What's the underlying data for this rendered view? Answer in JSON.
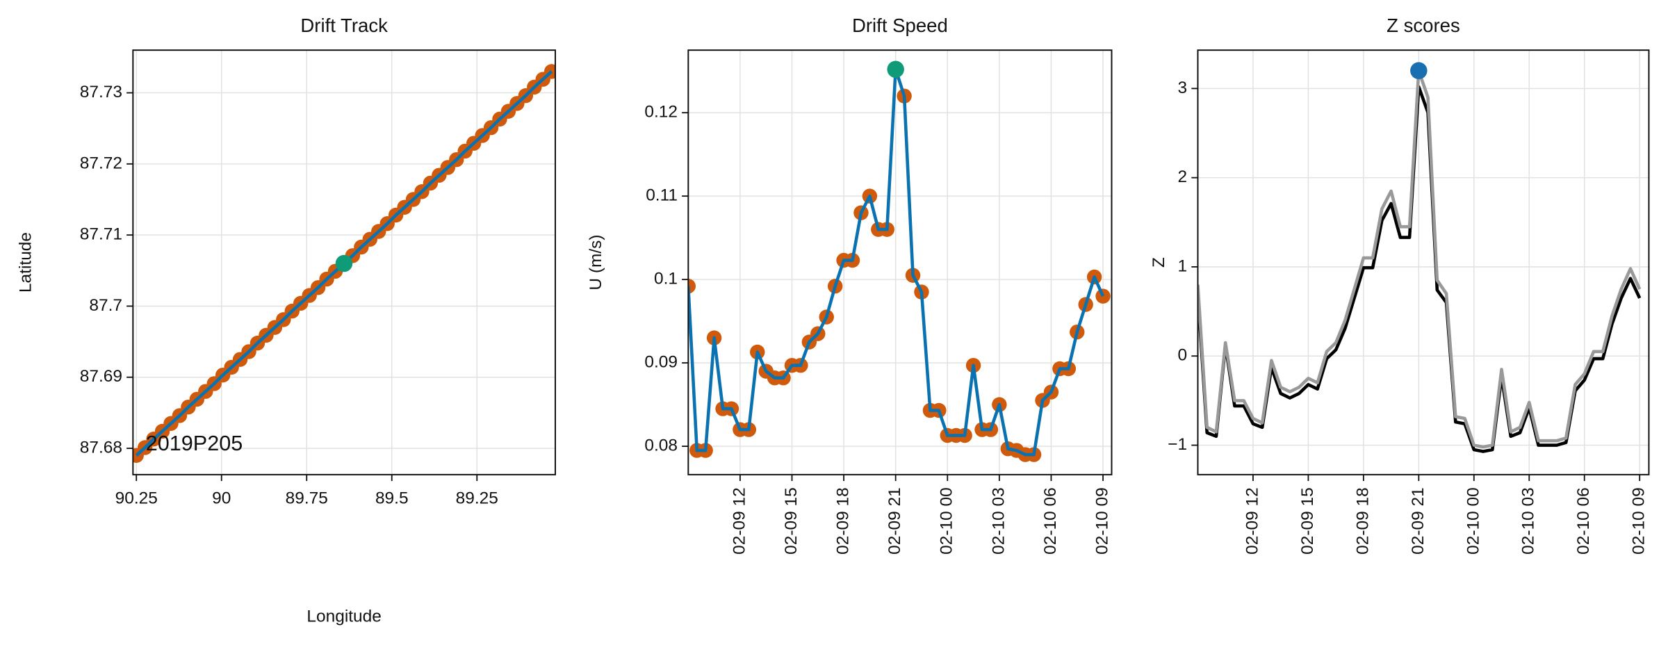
{
  "chart_data": [
    {
      "type": "line",
      "title": "Drift Track",
      "xlabel": "Longitude",
      "ylabel": "Latitude",
      "annotation": "2019P205",
      "x": [
        90.25,
        90.2246,
        90.1992,
        90.1738,
        90.1484,
        90.123,
        90.0976,
        90.0722,
        90.0468,
        90.0214,
        89.996,
        89.9706,
        89.9452,
        89.9198,
        89.8944,
        89.869,
        89.8436,
        89.8182,
        89.7928,
        89.7674,
        89.742,
        89.7166,
        89.6912,
        89.6658,
        89.6404,
        89.615,
        89.5896,
        89.5642,
        89.5388,
        89.5134,
        89.488,
        89.4626,
        89.4372,
        89.4118,
        89.3864,
        89.361,
        89.3356,
        89.3102,
        89.2848,
        89.2594,
        89.234,
        89.2086,
        89.1832,
        89.1578,
        89.1324,
        89.107,
        89.0816,
        89.0562,
        89.0308
      ],
      "series": [
        {
          "color": "#0a72b0",
          "marker_color": "#cf5a0c",
          "values": [
            87.679,
            87.6801,
            87.6813,
            87.6824,
            87.6835,
            87.6846,
            87.6858,
            87.6869,
            87.688,
            87.6891,
            87.6903,
            87.6914,
            87.6925,
            87.6936,
            87.6948,
            87.6959,
            87.697,
            87.6981,
            87.6993,
            87.7004,
            87.7015,
            87.7026,
            87.7038,
            87.7049,
            87.706,
            87.7071,
            87.7083,
            87.7094,
            87.7105,
            87.7116,
            87.7128,
            87.7139,
            87.715,
            87.7161,
            87.7173,
            87.7184,
            87.7195,
            87.7206,
            87.7218,
            87.7229,
            87.724,
            87.7251,
            87.7263,
            87.7274,
            87.7285,
            87.7296,
            87.7308,
            87.7319,
            87.733
          ]
        }
      ],
      "highlight": {
        "color": "#0f9a78",
        "x": 89.6404,
        "y": 87.706
      },
      "xlim": [
        90.26,
        89.02
      ],
      "xticks": [
        90.25,
        90,
        89.75,
        89.5,
        89.25
      ],
      "ylim": [
        87.6763,
        87.736
      ],
      "yticks": [
        87.68,
        87.69,
        87.7,
        87.71,
        87.72,
        87.73
      ],
      "grid": true
    },
    {
      "type": "line",
      "title": "Drift Speed",
      "ylabel": "U (m/s)",
      "x": [
        "02-09 09:00",
        "02-09 09:30",
        "02-09 10:00",
        "02-09 10:30",
        "02-09 11:00",
        "02-09 11:30",
        "02-09 12:00",
        "02-09 12:30",
        "02-09 13:00",
        "02-09 13:30",
        "02-09 14:00",
        "02-09 14:30",
        "02-09 15:00",
        "02-09 15:30",
        "02-09 16:00",
        "02-09 16:30",
        "02-09 17:00",
        "02-09 17:30",
        "02-09 18:00",
        "02-09 18:30",
        "02-09 19:00",
        "02-09 19:30",
        "02-09 20:00",
        "02-09 20:30",
        "02-09 21:00",
        "02-09 21:30",
        "02-09 22:00",
        "02-09 22:30",
        "02-09 23:00",
        "02-09 23:30",
        "02-10 00:00",
        "02-10 00:30",
        "02-10 01:00",
        "02-10 01:30",
        "02-10 02:00",
        "02-10 02:30",
        "02-10 03:00",
        "02-10 03:30",
        "02-10 04:00",
        "02-10 04:30",
        "02-10 05:00",
        "02-10 05:30",
        "02-10 06:00",
        "02-10 06:30",
        "02-10 07:00",
        "02-10 07:30",
        "02-10 08:00",
        "02-10 08:30",
        "02-10 09:00"
      ],
      "series": [
        {
          "color": "#0a72b0",
          "marker_color": "#cf5a0c",
          "values": [
            0.0992,
            0.0795,
            0.0795,
            0.093,
            0.0845,
            0.0845,
            0.082,
            0.082,
            0.0913,
            0.089,
            0.0882,
            0.0882,
            0.0897,
            0.0897,
            0.0925,
            0.0935,
            0.0955,
            0.0992,
            0.1023,
            0.1023,
            0.108,
            0.11,
            0.106,
            0.106,
            0.1252,
            0.122,
            0.1005,
            0.0985,
            0.0843,
            0.0843,
            0.0813,
            0.0813,
            0.0813,
            0.0897,
            0.082,
            0.082,
            0.085,
            0.0797,
            0.0795,
            0.079,
            0.079,
            0.0855,
            0.0865,
            0.0893,
            0.0893,
            0.0937,
            0.097,
            0.1003,
            0.098
          ]
        }
      ],
      "highlight": {
        "color": "#0f9a78",
        "x": "02-09 21:00",
        "y": 0.1252
      },
      "xlim": [
        "02-09 09:00",
        "02-10 09:30"
      ],
      "xticks": [
        {
          "value": "02-09 12:00",
          "label": "02-09 12"
        },
        {
          "value": "02-09 15:00",
          "label": "02-09 15"
        },
        {
          "value": "02-09 18:00",
          "label": "02-09 18"
        },
        {
          "value": "02-09 21:00",
          "label": "02-09 21"
        },
        {
          "value": "02-10 00:00",
          "label": "02-10 00"
        },
        {
          "value": "02-10 03:00",
          "label": "02-10 03"
        },
        {
          "value": "02-10 06:00",
          "label": "02-10 06"
        },
        {
          "value": "02-10 09:00",
          "label": "02-10 09"
        }
      ],
      "ylim": [
        0.0766,
        0.1275
      ],
      "yticks": [
        0.08,
        0.09,
        0.1,
        0.11,
        0.12
      ],
      "grid": true
    },
    {
      "type": "line",
      "title": "Z scores",
      "ylabel": "Z",
      "x": [
        "02-09 09:00",
        "02-09 09:30",
        "02-09 10:00",
        "02-09 10:30",
        "02-09 11:00",
        "02-09 11:30",
        "02-09 12:00",
        "02-09 12:30",
        "02-09 13:00",
        "02-09 13:30",
        "02-09 14:00",
        "02-09 14:30",
        "02-09 15:00",
        "02-09 15:30",
        "02-09 16:00",
        "02-09 16:30",
        "02-09 17:00",
        "02-09 17:30",
        "02-09 18:00",
        "02-09 18:30",
        "02-09 19:00",
        "02-09 19:30",
        "02-09 20:00",
        "02-09 20:30",
        "02-09 21:00",
        "02-09 21:30",
        "02-09 22:00",
        "02-09 22:30",
        "02-09 23:00",
        "02-09 23:30",
        "02-10 00:00",
        "02-10 00:30",
        "02-10 01:00",
        "02-10 01:30",
        "02-10 02:00",
        "02-10 02:30",
        "02-10 03:00",
        "02-10 03:30",
        "02-10 04:00",
        "02-10 04:30",
        "02-10 05:00",
        "02-10 05:30",
        "02-10 06:00",
        "02-10 06:30",
        "02-10 07:00",
        "02-10 07:30",
        "02-10 08:00",
        "02-10 08:30",
        "02-10 09:00"
      ],
      "series": [
        {
          "color": "#000000",
          "values": [
            0.7,
            -0.86,
            -0.9,
            0.12,
            -0.56,
            -0.56,
            -0.76,
            -0.8,
            -0.13,
            -0.42,
            -0.47,
            -0.42,
            -0.32,
            -0.37,
            -0.03,
            0.07,
            0.31,
            0.65,
            0.99,
            0.99,
            1.52,
            1.71,
            1.33,
            1.33,
            3.02,
            2.73,
            0.74,
            0.6,
            -0.74,
            -0.76,
            -1.05,
            -1.07,
            -1.05,
            -0.23,
            -0.9,
            -0.86,
            -0.58,
            -1.0,
            -1.0,
            -1.0,
            -0.97,
            -0.39,
            -0.27,
            -0.03,
            -0.03,
            0.36,
            0.65,
            0.87,
            0.65
          ]
        },
        {
          "color": "#999999",
          "values": [
            0.8,
            -0.8,
            -0.85,
            0.15,
            -0.5,
            -0.5,
            -0.7,
            -0.75,
            -0.05,
            -0.35,
            -0.4,
            -0.35,
            -0.25,
            -0.3,
            0.05,
            0.15,
            0.4,
            0.75,
            1.1,
            1.1,
            1.65,
            1.85,
            1.45,
            1.45,
            3.2,
            2.9,
            0.85,
            0.7,
            -0.68,
            -0.7,
            -1.0,
            -1.02,
            -1.0,
            -0.15,
            -0.85,
            -0.8,
            -0.52,
            -0.95,
            -0.95,
            -0.95,
            -0.92,
            -0.32,
            -0.2,
            0.05,
            0.05,
            0.45,
            0.75,
            0.98,
            0.75
          ]
        }
      ],
      "highlight": {
        "color": "#1a6fb0",
        "x": "02-09 21:00",
        "y": 3.2
      },
      "xlim": [
        "02-09 09:00",
        "02-10 09:30"
      ],
      "xticks": [
        {
          "value": "02-09 12:00",
          "label": "02-09 12"
        },
        {
          "value": "02-09 15:00",
          "label": "02-09 15"
        },
        {
          "value": "02-09 18:00",
          "label": "02-09 18"
        },
        {
          "value": "02-09 21:00",
          "label": "02-09 21"
        },
        {
          "value": "02-10 00:00",
          "label": "02-10 00"
        },
        {
          "value": "02-10 03:00",
          "label": "02-10 03"
        },
        {
          "value": "02-10 06:00",
          "label": "02-10 06"
        },
        {
          "value": "02-10 09:00",
          "label": "02-10 09"
        }
      ],
      "ylim": [
        -1.33,
        3.43
      ],
      "yticks": [
        {
          "value": -1,
          "label": "−1"
        },
        0,
        1,
        2,
        3
      ],
      "grid": true
    }
  ]
}
